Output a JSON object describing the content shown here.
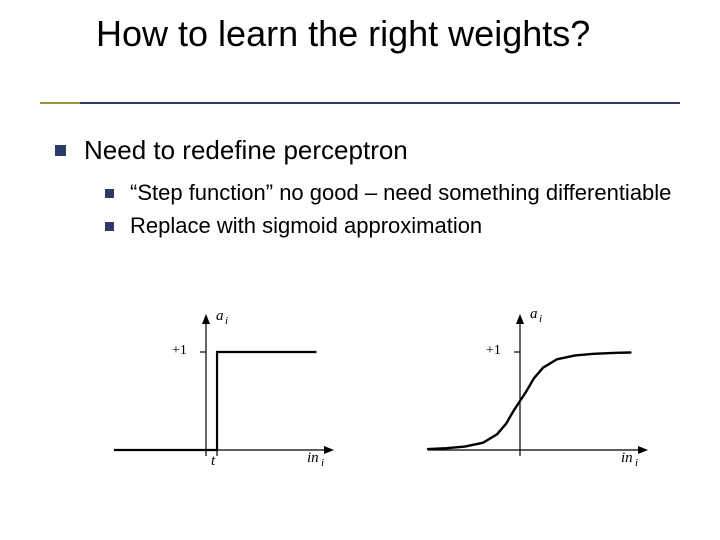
{
  "title": "How to learn the right weights?",
  "bullet1": "Need to redefine perceptron",
  "sub1": "“Step function” no good – need something differentiable",
  "sub2": "Replace with sigmoid approximation",
  "layout": {
    "title_underline_color": "#2b3a67",
    "title_accent_color": "#a09340",
    "bullet_color": "#2b3a67",
    "title_fontsize": 36,
    "body_l1_fontsize": 26,
    "body_l2_fontsize": 22
  },
  "graphs": {
    "step": {
      "type": "step_function",
      "y_top_label": "a",
      "y_top_sub": "i",
      "plus_one_label": "+1",
      "threshold_label": "t",
      "x_label": "in",
      "x_label_sub": "i",
      "axis_color": "#000000",
      "curve_color": "#000000",
      "line_width_axis": 1.2,
      "line_width_curve": 2.2,
      "xlim": [
        -1,
        1.2
      ],
      "ylim": [
        0,
        1.1
      ],
      "threshold_x": 0.12,
      "step_low": 0,
      "step_high": 1
    },
    "sigmoid": {
      "type": "sigmoid",
      "y_top_label": "a",
      "y_top_sub": "i",
      "plus_one_label": "+1",
      "x_label": "in",
      "x_label_sub": "i",
      "axis_color": "#000000",
      "curve_color": "#000000",
      "line_width_axis": 1.2,
      "line_width_curve": 2.4,
      "xlim": [
        -1,
        1.2
      ],
      "ylim": [
        0,
        1.1
      ],
      "points": [
        {
          "x": -1.0,
          "y": 0.01
        },
        {
          "x": -0.8,
          "y": 0.018
        },
        {
          "x": -0.6,
          "y": 0.035
        },
        {
          "x": -0.4,
          "y": 0.075
        },
        {
          "x": -0.25,
          "y": 0.16
        },
        {
          "x": -0.15,
          "y": 0.27
        },
        {
          "x": -0.07,
          "y": 0.4
        },
        {
          "x": 0.0,
          "y": 0.5
        },
        {
          "x": 0.07,
          "y": 0.6
        },
        {
          "x": 0.15,
          "y": 0.73
        },
        {
          "x": 0.25,
          "y": 0.84
        },
        {
          "x": 0.4,
          "y": 0.925
        },
        {
          "x": 0.6,
          "y": 0.965
        },
        {
          "x": 0.8,
          "y": 0.982
        },
        {
          "x": 1.05,
          "y": 0.992
        },
        {
          "x": 1.2,
          "y": 0.995
        }
      ]
    }
  }
}
